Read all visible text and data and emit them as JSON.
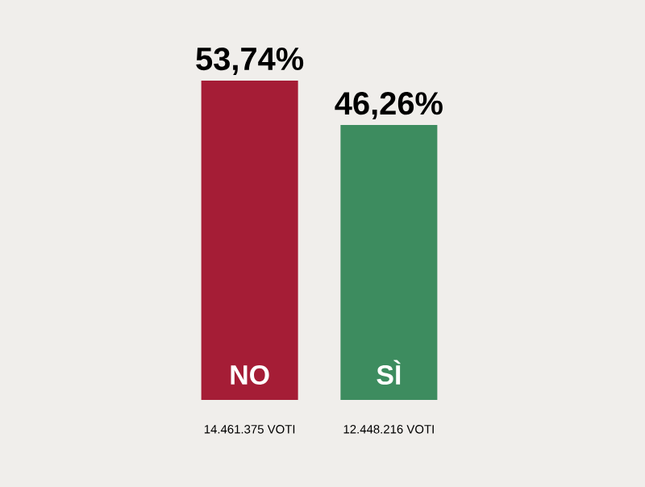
{
  "chart_data": {
    "type": "bar",
    "categories": [
      "NO",
      "SÌ"
    ],
    "values": [
      53.74,
      46.26
    ],
    "colors": [
      "#a51d36",
      "#3d8c5f"
    ],
    "value_labels": [
      "53,74%",
      "46,26%"
    ],
    "annotations": [
      "14.461.375 VOTI",
      "12.448.216 VOTI"
    ]
  }
}
